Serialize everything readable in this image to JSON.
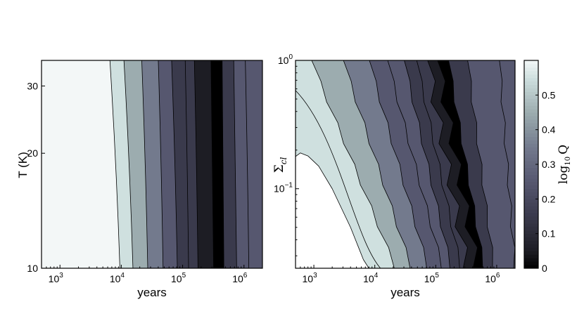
{
  "chart_data": [
    {
      "type": "contour",
      "xlabel": "years",
      "ylabel": "T (K)",
      "x_scale": "log",
      "y_scale": "log",
      "xlim": [
        500,
        2000000
      ],
      "ylim": [
        10,
        35
      ],
      "x_ticks": [
        {
          "value": 1000,
          "base": "10",
          "exp": "3"
        },
        {
          "value": 10000,
          "base": "10",
          "exp": "4"
        },
        {
          "value": 100000,
          "base": "10",
          "exp": "5"
        },
        {
          "value": 1000000,
          "base": "10",
          "exp": "6"
        }
      ],
      "y_ticks": [
        {
          "value": 10,
          "label": "10"
        },
        {
          "value": 20,
          "label": "20"
        },
        {
          "value": 30,
          "label": "30"
        }
      ],
      "bands": [
        {
          "q": 0.55,
          "x_bottom": 9500,
          "x_top": 6500
        },
        {
          "q": 0.45,
          "x_bottom": 15500,
          "x_top": 11000
        },
        {
          "q": 0.35,
          "x_bottom": 27000,
          "x_top": 21500
        },
        {
          "q": 0.25,
          "x_bottom": 48000,
          "x_top": 40000
        },
        {
          "q": 0.18,
          "x_bottom": 82000,
          "x_top": 66000
        },
        {
          "q": 0.12,
          "x_bottom": 125000,
          "x_top": 110000
        },
        {
          "q": 0.06,
          "x_bottom": 178000,
          "x_top": 155000
        },
        {
          "q": 0.0,
          "x_bottom": 320000,
          "x_top": 290000
        },
        {
          "q": 0.1,
          "x_bottom": 470000,
          "x_top": 440000
        },
        {
          "q": 0.2,
          "x_bottom": 760000,
          "x_top": 680000
        },
        {
          "q": 0.3,
          "x_bottom": 1200000,
          "x_top": 1050000
        },
        {
          "q": 0.42,
          "x_bottom": 2000000,
          "x_top": 2000000
        }
      ],
      "grid": false
    },
    {
      "type": "contour",
      "xlabel": "years",
      "ylabel_base": "Σ",
      "ylabel_sub": "cl",
      "x_scale": "log",
      "y_scale": "log",
      "xlim": [
        500,
        2000000
      ],
      "ylim": [
        0.024,
        1.0
      ],
      "x_ticks": [
        {
          "value": 1000,
          "base": "10",
          "exp": "3"
        },
        {
          "value": 10000,
          "base": "10",
          "exp": "4"
        },
        {
          "value": 100000,
          "base": "10",
          "exp": "5"
        },
        {
          "value": 1000000,
          "base": "10",
          "exp": "6"
        }
      ],
      "y_ticks": [
        {
          "value": 0.1,
          "base": "10",
          "exp": "−1"
        },
        {
          "value": 1.0,
          "base": "10",
          "exp": "0"
        }
      ],
      "white_region": {
        "q": 0.6,
        "boundary_x": [
          500,
          600,
          800,
          1200,
          2000,
          4000,
          6500,
          8000
        ],
        "boundary_y": [
          0.17,
          0.19,
          0.18,
          0.15,
          0.1,
          0.05,
          0.028,
          0.024
        ]
      },
      "bands": [
        {
          "q": 0.55,
          "x_top": 500,
          "x_bottom": 13000,
          "y_left": 0.62
        },
        {
          "q": 0.45,
          "x_top": 900,
          "x_bottom": 22000
        },
        {
          "q": 0.35,
          "x_top": 3000,
          "x_bottom": 40000
        },
        {
          "q": 0.28,
          "x_top": 8000,
          "x_bottom": 75000
        },
        {
          "q": 0.22,
          "x_top": 16000,
          "x_bottom": 130000
        },
        {
          "q": 0.16,
          "x_top": 30000,
          "x_bottom": 180000
        },
        {
          "q": 0.1,
          "x_top": 48000,
          "x_bottom": 260000
        },
        {
          "q": 0.04,
          "x_top": 72000,
          "x_bottom": 330000
        },
        {
          "q": 0.0,
          "x_top": 105000,
          "x_bottom": 480000
        },
        {
          "q": 0.1,
          "x_top": 160000,
          "x_bottom": 620000
        },
        {
          "q": 0.2,
          "x_top": 330000,
          "x_bottom": 900000
        },
        {
          "q": 0.28,
          "x_top": 1100000,
          "x_bottom": 2000000
        }
      ],
      "grid": false
    }
  ],
  "colorbar": {
    "label_base": "log",
    "label_sub": "10",
    "label_var": "Q",
    "range": [
      0,
      0.6
    ],
    "ticks": [
      {
        "value": 0,
        "label": "0"
      },
      {
        "value": 0.1,
        "label": "0.1"
      },
      {
        "value": 0.2,
        "label": "0.2"
      },
      {
        "value": 0.3,
        "label": "0.3"
      },
      {
        "value": 0.4,
        "label": "0.4"
      },
      {
        "value": 0.5,
        "label": "0.5"
      }
    ],
    "colors": [
      {
        "q": 0.0,
        "hex": "#000000"
      },
      {
        "q": 0.05,
        "hex": "#1d1d24"
      },
      {
        "q": 0.15,
        "hex": "#3a3a4c"
      },
      {
        "q": 0.25,
        "hex": "#56576f"
      },
      {
        "q": 0.35,
        "hex": "#737a8d"
      },
      {
        "q": 0.45,
        "hex": "#9cacaf"
      },
      {
        "q": 0.55,
        "hex": "#cfe0df"
      },
      {
        "q": 0.6,
        "hex": "#f3f7f7"
      }
    ]
  }
}
